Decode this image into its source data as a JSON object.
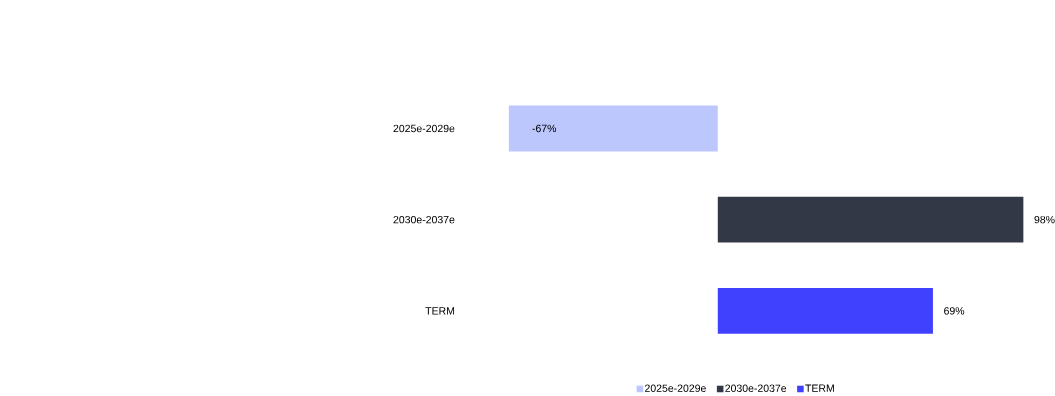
{
  "chart_data": {
    "type": "bar",
    "orientation": "horizontal",
    "categories": [
      "2025e-2029e",
      "2030e-2037e",
      "TERM"
    ],
    "series": [
      {
        "name": "2025e-2029e",
        "color": "#bcc7fd",
        "values": [
          -67,
          null,
          null
        ],
        "value_labels": [
          "-67%",
          null,
          null
        ]
      },
      {
        "name": "2030e-2037e",
        "color": "#323845",
        "values": [
          null,
          98,
          null
        ],
        "value_labels": [
          null,
          "98%",
          null
        ]
      },
      {
        "name": "TERM",
        "color": "#4040ff",
        "values": [
          null,
          null,
          69
        ],
        "value_labels": [
          null,
          null,
          "69%"
        ]
      }
    ],
    "legend": "bottom"
  }
}
